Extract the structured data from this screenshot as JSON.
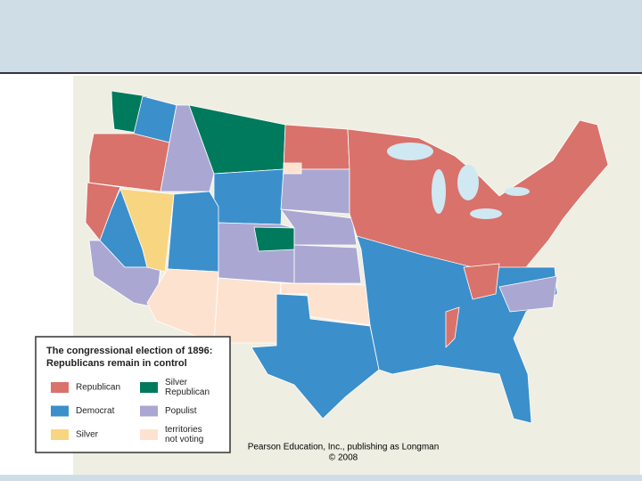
{
  "legend": {
    "title": [
      "The congressional election of 1896:",
      "Republicans remain in control"
    ],
    "items": [
      {
        "key": "rep",
        "label": [
          "Republican"
        ],
        "color": "#d9726b"
      },
      {
        "key": "silrep",
        "label": [
          "Silver",
          "Republican"
        ],
        "color": "#007a5c"
      },
      {
        "key": "dem",
        "label": [
          "Democrat"
        ],
        "color": "#3b8fcb"
      },
      {
        "key": "pop",
        "label": [
          "Populist"
        ],
        "color": "#aaa8d2"
      },
      {
        "key": "sil",
        "label": [
          "Silver"
        ],
        "color": "#f7d581"
      },
      {
        "key": "terr",
        "label": [
          "territories",
          "not voting"
        ],
        "color": "#fde2cf"
      }
    ]
  },
  "credit": [
    "Pearson Education, Inc., publishing as Longman",
    "© 2008"
  ]
}
